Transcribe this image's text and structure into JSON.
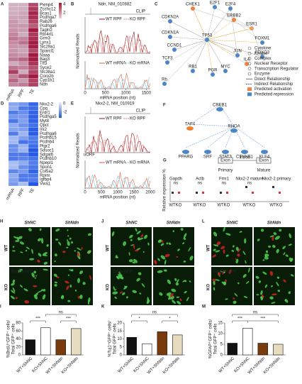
{
  "panels": {
    "A": {
      "label": "A",
      "genes": [
        "Pxmp4",
        "Zcchc12",
        "Bcas1",
        "Pcdhga7",
        "Rab26",
        "Pcdhga6",
        "Tagln2",
        "Rtn4rl1",
        "Grm3",
        "Lynx1",
        "Slc29a1",
        "Sparcl1",
        "Naaa",
        "Bag3",
        "Tff3",
        "Syce2",
        "Slc38a1",
        "Coro2b",
        "Cyp1b1",
        "Ndn"
      ],
      "columns": [
        "mRNA",
        "RPF",
        "TE"
      ],
      "legend_ticks": [
        4,
        2
      ]
    },
    "B": {
      "label": "B",
      "title": "Ndn, NM_010882",
      "clip": "CLIP",
      "legend_top": [
        "WT RPF",
        "KO RPF"
      ],
      "legend_bottom": [
        "WT mRNA",
        "KO mRNA"
      ],
      "ylabel": "Normalized Reads",
      "xlabel": "mRNA position (nt)",
      "xlim": [
        0,
        1600
      ],
      "xticks": [
        0,
        500,
        1000,
        1500
      ]
    },
    "C": {
      "label": "C",
      "nodes": [
        "CHEK1",
        "E2F1",
        "E2F4",
        "ERBB2",
        "CDKN2A",
        "CDKN1A",
        "ESR1",
        "TP53",
        "CCND1",
        "FOXM1",
        "FOXO3",
        "TCF3",
        "JUN",
        "Rb",
        "RB1",
        "PGR",
        "MYC",
        "IL4"
      ],
      "legend": [
        "Cytokine",
        "Kinase",
        "Complex",
        "Nuclear Receptor",
        "Transcription Regulator",
        "Enzyme",
        "Direct Relationship",
        "Indirect Relationship",
        "Predicted activation",
        "Predicted repression"
      ]
    },
    "D": {
      "label": "D",
      "genes": [
        "Nkx2-2",
        "Cpq",
        "Erdr1",
        "Pcdhga5",
        "Myt8",
        "Qpct",
        "Irx2",
        "Pcdhga6",
        "Pcdhb15",
        "Pcdhb4",
        "Ptgr2",
        "Sdsoc1",
        "Sdgat6",
        "Pcdhb10",
        "Npepl1",
        "Spon1",
        "Col5a2",
        "Rprm",
        "Igfbp4",
        "Vwa1"
      ],
      "columns": [
        "mRNA",
        "RPF",
        "TE"
      ],
      "legend_ticks": [
        0,
        -2
      ]
    },
    "E": {
      "label": "E",
      "title": "Nkx2-2, NM_010919",
      "clip": "CLIP",
      "legend_top": [
        "WT RPF",
        "KO RPF"
      ],
      "legend_bottom": [
        "WT mRNA",
        "KO mRNA"
      ],
      "annotation": "uORF",
      "ylabel": "Normalized Reads",
      "xlabel": "mRNA position (nt)",
      "xlim": [
        0,
        2000
      ],
      "xticks": [
        0,
        500,
        1000,
        1500,
        2000
      ]
    },
    "F": {
      "label": "F",
      "nodes": [
        "CREB1",
        "TAF4",
        "RHOA",
        "PPARG",
        "SRF",
        "STAT3",
        "CTNNB1",
        "KLF4"
      ]
    },
    "G": {
      "label": "G",
      "diagram": [
        "Exon",
        "Intron",
        "Exon",
        "Primary",
        "Mature"
      ],
      "categories": [
        "Gapdh",
        "Actb",
        "Fmr1",
        "Nkx2-2 mature",
        "Nkx2-2 primary"
      ],
      "group_labels": [
        "WT",
        "KO"
      ],
      "sig": [
        "ns",
        "ns",
        "ns",
        "ns"
      ],
      "ylabel": "Relative expression %"
    },
    "H": {
      "label": "H",
      "cols": [
        "ShNC",
        "ShNdn"
      ],
      "rows": [
        "WT",
        "KO"
      ],
      "stain": "BrdU+GFP"
    },
    "J": {
      "label": "J",
      "cols": [
        "ShNC",
        "ShNdn"
      ],
      "rows": [
        "WT",
        "KO"
      ],
      "stain": "Tuj1+GFP"
    },
    "L": {
      "label": "L",
      "cols": [
        "ShNC",
        "ShNdn"
      ],
      "rows": [
        "WT",
        "KO"
      ],
      "stain": "GFAP+GFP"
    },
    "I": {
      "label": "I",
      "ylabel": [
        "%BrdU⁺GFP⁺ cells/",
        "Total GFP⁺ cells"
      ],
      "categories": [
        "WT+ShNC",
        "KO+ShNC",
        "WT+ShNdn",
        "KO+ShNdn"
      ],
      "values": [
        38,
        68,
        38,
        66
      ],
      "colors": [
        "#111111",
        "#ffffff",
        "#7a3b0c",
        "#e8dcc0"
      ],
      "ylim": [
        0,
        80
      ],
      "yticks": [
        0,
        20,
        40,
        60,
        80
      ],
      "sig": [
        "***",
        "***",
        "ns"
      ]
    },
    "K": {
      "label": "K",
      "ylabel": [
        "%Tuj1⁺GFP⁺ cells/",
        "Total GFP⁺ cells"
      ],
      "categories": [
        "WT+ShNC",
        "KO+ShNC",
        "WT+ShNdn",
        "KO+ShNdn"
      ],
      "values": [
        11,
        7,
        14.5,
        12.5
      ],
      "colors": [
        "#111111",
        "#ffffff",
        "#7a3b0c",
        "#e8dcc0"
      ],
      "ylim": [
        0,
        20
      ],
      "yticks": [
        0,
        5,
        10,
        15,
        20
      ],
      "sig": [
        "*",
        "*",
        "ns"
      ]
    },
    "M": {
      "label": "M",
      "ylabel": [
        "%GFAP⁺GFP⁺ cells/",
        "Total GFP⁺ cells"
      ],
      "categories": [
        "WT+ShNC",
        "KO+ShNC",
        "WT+ShNdn",
        "KO+ShNdn"
      ],
      "values": [
        5.5,
        12.5,
        5.5,
        5
      ],
      "colors": [
        "#111111",
        "#ffffff",
        "#7a3b0c",
        "#e8dcc0"
      ],
      "ylim": [
        0,
        15
      ],
      "yticks": [
        0,
        5,
        10,
        15
      ],
      "sig": [
        "***",
        "***",
        "ns"
      ]
    }
  }
}
